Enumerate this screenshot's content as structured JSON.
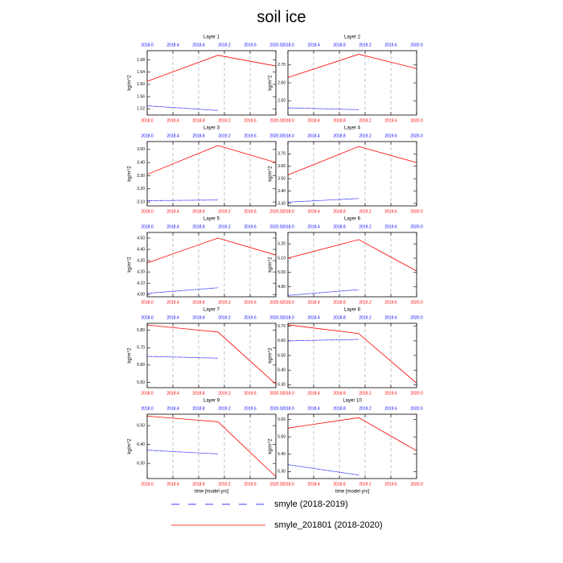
{
  "title": "soil ice",
  "chart_data": [
    {
      "type": "line",
      "title": "Layer 1",
      "ylabel": "kg/m^2",
      "xlim": [
        2018.0,
        2020.0
      ],
      "xticks": [
        {
          "value": 2018.0,
          "label": "2018.0"
        },
        2018.4,
        2018.8,
        2019.2,
        2019.6,
        {
          "value": 2020.0,
          "label": "2020.0"
        }
      ],
      "x2ticks": [
        {
          "value": 2018.0,
          "label": "2018.0"
        },
        2018.4,
        2018.8,
        2019.2,
        2019.6,
        {
          "value": 2020.0,
          "label": "2020.0"
        }
      ],
      "xtick_color": "red",
      "x2tick_color": "blue",
      "grid": "x",
      "ylim": [
        1.5,
        1.71
      ],
      "yticks": [
        1.52,
        1.56,
        {
          "value": 1.6,
          "label": "1.60"
        },
        1.64,
        1.68
      ],
      "series": [
        {
          "name": "smyle (2018-2019)",
          "color": "blue",
          "dash": true,
          "x": [
            2018.0,
            2019.1
          ],
          "values": [
            1.53,
            1.515
          ]
        },
        {
          "name": "smyle_201801 (2018-2020)",
          "color": "red",
          "x": [
            2018.0,
            2019.1,
            2020.0
          ],
          "values": [
            1.61,
            1.695,
            1.66
          ]
        }
      ]
    },
    {
      "type": "line",
      "title": "Layer 2",
      "ylabel": "kg/m^2",
      "xlim": [
        2018.0,
        2020.0
      ],
      "xticks": [
        {
          "value": 2018.0,
          "label": "2018.0"
        },
        2018.4,
        2018.8,
        2019.2,
        2019.6,
        {
          "value": 2020.0,
          "label": "2020.0"
        }
      ],
      "x2ticks": [
        {
          "value": 2018.0,
          "label": "2018.0"
        },
        2018.4,
        2018.8,
        2019.2,
        2019.6,
        {
          "value": 2020.0,
          "label": "2020.0"
        }
      ],
      "xtick_color": "red",
      "x2tick_color": "blue",
      "grid": "x",
      "ylim": [
        2.42,
        2.78
      ],
      "yticks": [
        {
          "value": 2.5,
          "label": "2.50"
        },
        {
          "value": 2.6,
          "label": "2.60"
        },
        {
          "value": 2.7,
          "label": "2.70"
        }
      ],
      "series": [
        {
          "name": "smyle (2018-2019)",
          "color": "blue",
          "dash": true,
          "x": [
            2018.0,
            2019.1
          ],
          "values": [
            2.46,
            2.45
          ]
        },
        {
          "name": "smyle_201801 (2018-2020)",
          "color": "red",
          "x": [
            2018.0,
            2019.1,
            2020.0
          ],
          "values": [
            2.63,
            2.76,
            2.68
          ]
        }
      ]
    },
    {
      "type": "line",
      "title": "Layer 3",
      "ylabel": "kg/m^2",
      "xlim": [
        2018.0,
        2020.0
      ],
      "xticks": [
        {
          "value": 2018.0,
          "label": "2018.0"
        },
        2018.4,
        2018.8,
        2019.2,
        2019.6,
        {
          "value": 2020.0,
          "label": "2020.0"
        }
      ],
      "x2ticks": [
        {
          "value": 2018.0,
          "label": "2018.0"
        },
        2018.4,
        2018.8,
        2019.2,
        2019.6,
        {
          "value": 2020.0,
          "label": "2020.0"
        }
      ],
      "xtick_color": "red",
      "x2tick_color": "blue",
      "grid": "x",
      "ylim": [
        3.07,
        3.56
      ],
      "yticks": [
        {
          "value": 3.1,
          "label": "3.10"
        },
        {
          "value": 3.2,
          "label": "3.20"
        },
        {
          "value": 3.3,
          "label": "3.30"
        },
        {
          "value": 3.4,
          "label": "3.40"
        },
        {
          "value": 3.5,
          "label": "3.50"
        }
      ],
      "series": [
        {
          "name": "smyle (2018-2019)",
          "color": "blue",
          "dash": true,
          "x": [
            2018.0,
            2019.1
          ],
          "values": [
            3.11,
            3.115
          ]
        },
        {
          "name": "smyle_201801 (2018-2020)",
          "color": "red",
          "x": [
            2018.0,
            2019.1,
            2020.0
          ],
          "values": [
            3.31,
            3.53,
            3.4
          ]
        }
      ]
    },
    {
      "type": "line",
      "title": "Layer 4",
      "ylabel": "kg/m^2",
      "xlim": [
        2018.0,
        2020.0
      ],
      "xticks": [
        {
          "value": 2018.0,
          "label": "2018.0"
        },
        2018.4,
        2018.8,
        2019.2,
        2019.6,
        {
          "value": 2020.0,
          "label": "2020.0"
        }
      ],
      "x2ticks": [
        {
          "value": 2018.0,
          "label": "2018.0"
        },
        2018.4,
        2018.8,
        2019.2,
        2019.6,
        {
          "value": 2020.0,
          "label": "2020.0"
        }
      ],
      "xtick_color": "red",
      "x2tick_color": "blue",
      "grid": "x",
      "ylim": [
        3.28,
        3.8
      ],
      "yticks": [
        {
          "value": 3.3,
          "label": "3.30"
        },
        {
          "value": 3.4,
          "label": "3.40"
        },
        {
          "value": 3.5,
          "label": "3.50"
        },
        {
          "value": 3.6,
          "label": "3.60"
        },
        {
          "value": 3.7,
          "label": "3.70"
        }
      ],
      "series": [
        {
          "name": "smyle (2018-2019)",
          "color": "blue",
          "dash": true,
          "x": [
            2018.0,
            2019.1
          ],
          "values": [
            3.31,
            3.34
          ]
        },
        {
          "name": "smyle_201801 (2018-2020)",
          "color": "red",
          "x": [
            2018.0,
            2019.1,
            2020.0
          ],
          "values": [
            3.53,
            3.76,
            3.63
          ]
        }
      ]
    },
    {
      "type": "line",
      "title": "Layer 5",
      "ylabel": "kg/m^2",
      "xlim": [
        2018.0,
        2020.0
      ],
      "xticks": [
        {
          "value": 2018.0,
          "label": "2018.0"
        },
        2018.4,
        2018.8,
        2019.2,
        2019.6,
        {
          "value": 2020.0,
          "label": "2020.0"
        }
      ],
      "x2ticks": [
        {
          "value": 2018.0,
          "label": "2018.0"
        },
        2018.4,
        2018.8,
        2019.2,
        2019.6,
        {
          "value": 2020.0,
          "label": "2020.0"
        }
      ],
      "xtick_color": "red",
      "x2tick_color": "blue",
      "grid": "x",
      "ylim": [
        3.98,
        4.55
      ],
      "yticks": [
        {
          "value": 4.0,
          "label": "4.00"
        },
        {
          "value": 4.1,
          "label": "4.10"
        },
        {
          "value": 4.2,
          "label": "4.20"
        },
        {
          "value": 4.3,
          "label": "4.30"
        },
        {
          "value": 4.4,
          "label": "4.40"
        },
        {
          "value": 4.5,
          "label": "4.50"
        }
      ],
      "series": [
        {
          "name": "smyle (2018-2019)",
          "color": "blue",
          "dash": true,
          "x": [
            2018.0,
            2019.1
          ],
          "values": [
            4.01,
            4.06
          ]
        },
        {
          "name": "smyle_201801 (2018-2020)",
          "color": "red",
          "x": [
            2018.0,
            2019.1,
            2020.0
          ],
          "values": [
            4.28,
            4.5,
            4.35
          ]
        }
      ]
    },
    {
      "type": "line",
      "title": "Layer 6",
      "ylabel": "kg/m^2",
      "xlim": [
        2018.0,
        2020.0
      ],
      "xticks": [
        {
          "value": 2018.0,
          "label": "2018.0"
        },
        2018.4,
        2018.8,
        2019.2,
        2019.6,
        {
          "value": 2020.0,
          "label": "2020.0"
        }
      ],
      "x2ticks": [
        {
          "value": 2018.0,
          "label": "2018.0"
        },
        2018.4,
        2018.8,
        2019.2,
        2019.6,
        {
          "value": 2020.0,
          "label": "2020.0"
        }
      ],
      "xtick_color": "red",
      "x2tick_color": "blue",
      "grid": "x",
      "ylim": [
        4.83,
        5.28
      ],
      "yticks": [
        {
          "value": 4.9,
          "label": "4.90"
        },
        {
          "value": 5.0,
          "label": "5.00"
        },
        {
          "value": 5.1,
          "label": "5.10"
        },
        {
          "value": 5.2,
          "label": "5.20"
        }
      ],
      "series": [
        {
          "name": "smyle (2018-2019)",
          "color": "blue",
          "dash": true,
          "x": [
            2018.0,
            2019.1
          ],
          "values": [
            4.84,
            4.88
          ]
        },
        {
          "name": "smyle_201801 (2018-2020)",
          "color": "red",
          "x": [
            2018.0,
            2019.1,
            2020.0
          ],
          "values": [
            5.1,
            5.23,
            5.01
          ]
        }
      ]
    },
    {
      "type": "line",
      "title": "Layer 7",
      "ylabel": "kg/m^2",
      "xlim": [
        2018.0,
        2020.0
      ],
      "xticks": [
        {
          "value": 2018.0,
          "label": "2018.0"
        },
        2018.4,
        2018.8,
        2019.2,
        2019.6,
        {
          "value": 2020.0,
          "label": "2020.0"
        }
      ],
      "x2ticks": [
        {
          "value": 2018.0,
          "label": "2018.0"
        },
        2018.4,
        2018.8,
        2019.2,
        2019.6,
        {
          "value": 2020.0,
          "label": "2020.0"
        }
      ],
      "xtick_color": "red",
      "x2tick_color": "blue",
      "grid": "x",
      "ylim": [
        5.47,
        5.84
      ],
      "yticks": [
        {
          "value": 5.5,
          "label": "5.50"
        },
        {
          "value": 5.6,
          "label": "5.60"
        },
        {
          "value": 5.7,
          "label": "5.70"
        },
        {
          "value": 5.8,
          "label": "5.80"
        }
      ],
      "series": [
        {
          "name": "smyle (2018-2019)",
          "color": "blue",
          "dash": true,
          "x": [
            2018.0,
            2019.1
          ],
          "values": [
            5.65,
            5.64
          ]
        },
        {
          "name": "smyle_201801 (2018-2020)",
          "color": "red",
          "x": [
            2018.0,
            2019.1,
            2020.0
          ],
          "values": [
            5.83,
            5.79,
            5.49
          ]
        }
      ]
    },
    {
      "type": "line",
      "title": "Layer 8",
      "ylabel": "kg/m^2",
      "xlim": [
        2018.0,
        2020.0
      ],
      "xticks": [
        {
          "value": 2018.0,
          "label": "2018.0"
        },
        2018.4,
        2018.8,
        2019.2,
        2019.6,
        {
          "value": 2020.0,
          "label": "2020.0"
        }
      ],
      "x2ticks": [
        {
          "value": 2018.0,
          "label": "2018.0"
        },
        2018.4,
        2018.8,
        2019.2,
        2019.6,
        {
          "value": 2020.0,
          "label": "2020.0"
        }
      ],
      "xtick_color": "red",
      "x2tick_color": "blue",
      "grid": "x",
      "ylim": [
        6.28,
        6.72
      ],
      "yticks": [
        {
          "value": 6.3,
          "label": "6.30"
        },
        {
          "value": 6.4,
          "label": "6.40"
        },
        {
          "value": 6.5,
          "label": "6.50"
        },
        {
          "value": 6.6,
          "label": "6.60"
        },
        {
          "value": 6.7,
          "label": "6.70"
        }
      ],
      "series": [
        {
          "name": "smyle (2018-2019)",
          "color": "blue",
          "dash": true,
          "x": [
            2018.0,
            2019.1
          ],
          "values": [
            6.6,
            6.61
          ]
        },
        {
          "name": "smyle_201801 (2018-2020)",
          "color": "red",
          "x": [
            2018.0,
            2019.1,
            2020.0
          ],
          "values": [
            6.71,
            6.65,
            6.31
          ]
        }
      ]
    },
    {
      "type": "line",
      "title": "Layer 9",
      "ylabel": "kg/m^2",
      "xlabel": "time [model yrs]",
      "xlim": [
        2018.0,
        2020.0
      ],
      "xticks": [
        {
          "value": 2018.0,
          "label": "2018.0"
        },
        2018.4,
        2018.8,
        2019.2,
        2019.6,
        {
          "value": 2020.0,
          "label": "2020.0"
        }
      ],
      "x2ticks": [
        {
          "value": 2018.0,
          "label": "2018.0"
        },
        2018.4,
        2018.8,
        2019.2,
        2019.6,
        {
          "value": 2020.0,
          "label": "2020.0"
        }
      ],
      "xtick_color": "red",
      "x2tick_color": "blue",
      "grid": "x",
      "ylim": [
        6.22,
        6.56
      ],
      "yticks": [
        {
          "value": 6.3,
          "label": "6.30"
        },
        {
          "value": 6.4,
          "label": "6.40"
        },
        {
          "value": 6.5,
          "label": "6.50"
        }
      ],
      "series": [
        {
          "name": "smyle (2018-2019)",
          "color": "blue",
          "dash": true,
          "x": [
            2018.0,
            2019.1
          ],
          "values": [
            6.37,
            6.35
          ]
        },
        {
          "name": "smyle_201801 (2018-2020)",
          "color": "red",
          "x": [
            2018.0,
            2019.1,
            2020.0
          ],
          "values": [
            6.55,
            6.52,
            6.23
          ]
        }
      ]
    },
    {
      "type": "line",
      "title": "Layer 10",
      "ylabel": "kg/m^2",
      "xlabel": "time [model yrs]",
      "xlim": [
        2018.0,
        2020.0
      ],
      "xticks": [
        {
          "value": 2018.0,
          "label": "2018.0"
        },
        2018.4,
        2018.8,
        2019.2,
        2019.6,
        {
          "value": 2020.0,
          "label": "2020.0"
        }
      ],
      "x2ticks": [
        {
          "value": 2018.0,
          "label": "2018.0"
        },
        2018.4,
        2018.8,
        2019.2,
        2019.6,
        {
          "value": 2020.0,
          "label": "2020.0"
        }
      ],
      "xtick_color": "red",
      "x2tick_color": "blue",
      "grid": "x",
      "ylim": [
        5.26,
        5.63
      ],
      "yticks": [
        {
          "value": 5.3,
          "label": "5.30"
        },
        {
          "value": 5.4,
          "label": "5.40"
        },
        {
          "value": 5.5,
          "label": "5.50"
        },
        {
          "value": 5.6,
          "label": "5.60"
        }
      ],
      "series": [
        {
          "name": "smyle (2018-2019)",
          "color": "blue",
          "dash": true,
          "x": [
            2018.0,
            2019.1
          ],
          "values": [
            5.34,
            5.28
          ]
        },
        {
          "name": "smyle_201801 (2018-2020)",
          "color": "red",
          "x": [
            2018.0,
            2019.1,
            2020.0
          ],
          "values": [
            5.55,
            5.61,
            5.42
          ]
        }
      ]
    }
  ]
}
